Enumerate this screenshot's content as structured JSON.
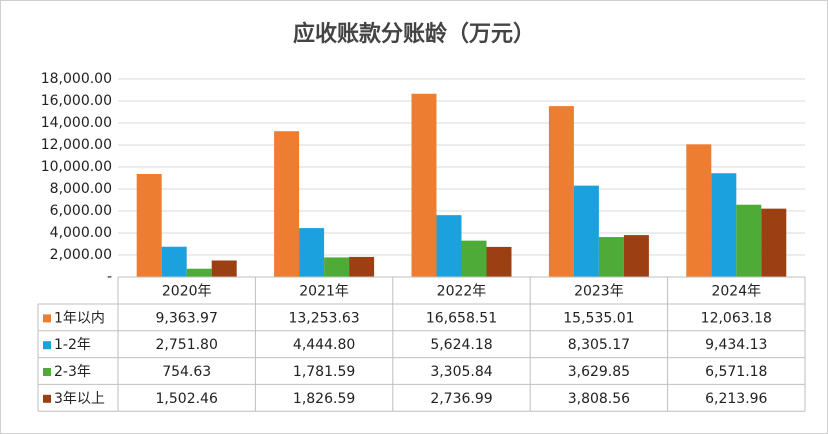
{
  "chart_data": {
    "type": "bar",
    "title": "应收账款分账龄（万元）",
    "categories": [
      "2020年",
      "2021年",
      "2022年",
      "2023年",
      "2024年"
    ],
    "series": [
      {
        "name": "1年以内",
        "color": "#ED7D31",
        "values": [
          9363.97,
          13253.63,
          16658.51,
          15535.01,
          12063.18
        ],
        "value_labels": [
          "9,363.97",
          "13,253.63",
          "16,658.51",
          "15,535.01",
          "12,063.18"
        ]
      },
      {
        "name": "1-2年",
        "color": "#1AA1DE",
        "values": [
          2751.8,
          4444.8,
          5624.18,
          8305.17,
          9434.13
        ],
        "value_labels": [
          "2,751.80",
          "4,444.80",
          "5,624.18",
          "8,305.17",
          "9,434.13"
        ]
      },
      {
        "name": "2-3年",
        "color": "#4FAB37",
        "values": [
          754.63,
          1781.59,
          3305.84,
          3629.85,
          6571.18
        ],
        "value_labels": [
          "754.63",
          "1,781.59",
          "3,305.84",
          "3,629.85",
          "6,571.18"
        ]
      },
      {
        "name": "3年以上",
        "color": "#9C3F13",
        "values": [
          1502.46,
          1826.59,
          2736.99,
          3808.56,
          6213.96
        ],
        "value_labels": [
          "1,502.46",
          "1,826.59",
          "2,736.99",
          "3,808.56",
          "6,213.96"
        ]
      }
    ],
    "ylim": [
      0,
      18000
    ],
    "yticks": [
      {
        "value": 0,
        "label": "-"
      },
      {
        "value": 2000,
        "label": "2,000.00"
      },
      {
        "value": 4000,
        "label": "4,000.00"
      },
      {
        "value": 6000,
        "label": "6,000.00"
      },
      {
        "value": 8000,
        "label": "8,000.00"
      },
      {
        "value": 10000,
        "label": "10,000.00"
      },
      {
        "value": 12000,
        "label": "12,000.00"
      },
      {
        "value": 14000,
        "label": "14,000.00"
      },
      {
        "value": 16000,
        "label": "16,000.00"
      },
      {
        "value": 18000,
        "label": "18,000.00"
      }
    ],
    "grid": true
  }
}
